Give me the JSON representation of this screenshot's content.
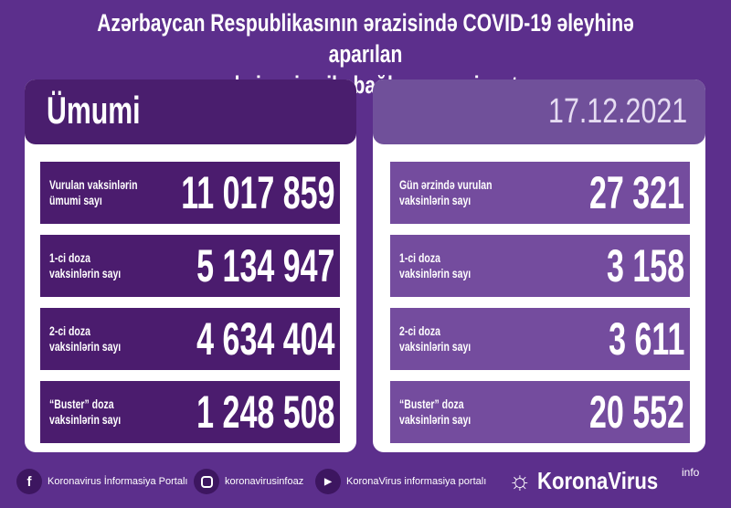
{
  "title": {
    "line1": "Azərbaycan Respublikasının ərazisində COVID-19 əleyhinə aparılan",
    "line2": "vaksinasiya ilə bağlı son vəziyyət"
  },
  "left": {
    "heading": "Ümumi",
    "rows": [
      {
        "label1": "Vurulan vaksinlərin",
        "label2": "ümumi sayı",
        "value": "11 017 859"
      },
      {
        "label1": "1-ci doza",
        "label2": "vaksinlərin sayı",
        "value": "5 134 947"
      },
      {
        "label1": "2-ci doza",
        "label2": "vaksinlərin sayı",
        "value": "4 634 404"
      },
      {
        "label1": "“Buster” doza",
        "label2": "vaksinlərin sayı",
        "value": "1 248 508"
      }
    ]
  },
  "right": {
    "date": "17.12.2021",
    "rows": [
      {
        "label1": "Gün ərzində vurulan",
        "label2": "vaksinlərin sayı",
        "value": "27 321"
      },
      {
        "label1": "1-ci doza",
        "label2": "vaksinlərin sayı",
        "value": "3 158"
      },
      {
        "label1": "2-ci doza",
        "label2": "vaksinlərin sayı",
        "value": "3 611"
      },
      {
        "label1": "“Buster” doza",
        "label2": "vaksinlərin sayı",
        "value": "20 552"
      }
    ]
  },
  "footer": {
    "facebook": "Koronavirus İnformasiya Portalı",
    "instagram": "koronavirusinfoaz",
    "youtube": "KoronaVirus informasiya portalı",
    "brand": "KoronaVirus",
    "brand_sup": "info"
  },
  "colors": {
    "background": "#5c2f8c",
    "left_panel": "#4b1c6e",
    "right_panel": "#744c9e"
  }
}
